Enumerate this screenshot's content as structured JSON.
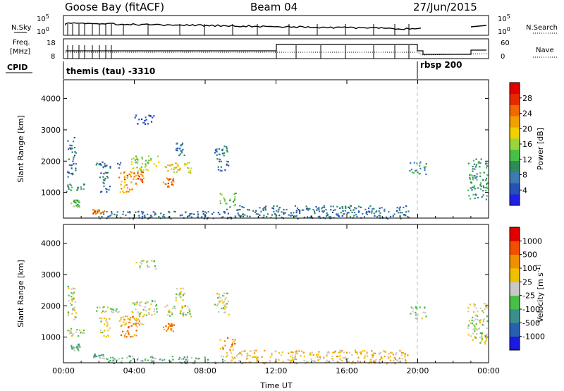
{
  "header": {
    "station": "Goose Bay (fitACF)",
    "beam": "Beam 04",
    "date": "27/Jun/2015"
  },
  "top_panels": {
    "nsky_label": "N.Sky",
    "nsky_tick_hi": "10^5",
    "nsky_tick_lo": "10^0",
    "nsearch_label": "N.Search",
    "nsearch_tick_hi": "10^5",
    "nsearch_tick_lo": "10^0",
    "freq_label_1": "Freq.",
    "freq_label_2": "[MHz]",
    "freq_tick_hi": "18",
    "freq_tick_lo": "8",
    "nave_label": "Nave",
    "nave_tick_hi": "60",
    "nave_tick_lo": "0",
    "cpid_label": "CPID",
    "cpid_segments": [
      {
        "label": "themis (tau) -3310",
        "start_hour": 0.0,
        "end_hour": 20.0
      },
      {
        "label": "rbsp 200",
        "start_hour": 20.0,
        "end_hour": 24.0
      }
    ]
  },
  "chart_data": [
    {
      "type": "heatmap",
      "panel": "power",
      "ylabel": "Slant Range [km]",
      "ylim": [
        180,
        4600
      ],
      "yticks": [
        1000,
        2000,
        3000,
        4000
      ],
      "xlim": [
        0,
        24
      ],
      "xticks": [
        "00:00",
        "04:00",
        "08:00",
        "12:00",
        "16:00",
        "20:00",
        "00:00"
      ],
      "colorbar": {
        "label": "Power [dB]",
        "ticks": [
          "4",
          "8",
          "12",
          "16",
          "20",
          "24",
          "28"
        ],
        "colors": [
          "#1f1fe6",
          "#2850b4",
          "#3c7ab0",
          "#2e8b57",
          "#48c048",
          "#9bd53c",
          "#f0d000",
          "#f0a000",
          "#f06a00",
          "#e52a00",
          "#e00000"
        ]
      },
      "regions": [
        {
          "t0": 0.1,
          "t1": 1.2,
          "r0": 1050,
          "r1": 1300,
          "level": 3
        },
        {
          "t0": 0.2,
          "t1": 0.7,
          "r0": 1500,
          "r1": 2800,
          "level": 2
        },
        {
          "t0": 0.4,
          "t1": 0.9,
          "r0": 550,
          "r1": 800,
          "level": 4
        },
        {
          "t0": 1.6,
          "t1": 2.3,
          "r0": 340,
          "r1": 480,
          "level": 8
        },
        {
          "t0": 2.0,
          "t1": 2.6,
          "r0": 1000,
          "r1": 1700,
          "level": 2
        },
        {
          "t0": 1.8,
          "t1": 3.2,
          "r0": 1800,
          "r1": 2000,
          "level": 2
        },
        {
          "t0": 3.1,
          "t1": 4.1,
          "r0": 1000,
          "r1": 1700,
          "level": 7
        },
        {
          "t0": 3.3,
          "t1": 4.5,
          "r0": 1350,
          "r1": 1700,
          "level": 8
        },
        {
          "t0": 3.8,
          "t1": 5.4,
          "r0": 1700,
          "r1": 2200,
          "level": 5
        },
        {
          "t0": 5.6,
          "t1": 6.2,
          "r0": 1200,
          "r1": 1500,
          "level": 8
        },
        {
          "t0": 5.7,
          "t1": 7.2,
          "r0": 1650,
          "r1": 2050,
          "level": 6
        },
        {
          "t0": 6.3,
          "t1": 6.8,
          "r0": 2200,
          "r1": 2600,
          "level": 2
        },
        {
          "t0": 4.0,
          "t1": 5.2,
          "r0": 3200,
          "r1": 3500,
          "level": 1
        },
        {
          "t0": 8.8,
          "t1": 9.7,
          "r0": 600,
          "r1": 1000,
          "level": 4
        },
        {
          "t0": 8.5,
          "t1": 9.3,
          "r0": 1700,
          "r1": 2500,
          "level": 2
        },
        {
          "t0": 2.0,
          "t1": 9.0,
          "r0": 180,
          "r1": 420,
          "level": 2
        },
        {
          "t0": 9.0,
          "t1": 19.5,
          "r0": 180,
          "r1": 600,
          "level": 2
        },
        {
          "t0": 19.5,
          "t1": 20.5,
          "r0": 1600,
          "r1": 2000,
          "level": 3
        },
        {
          "t0": 22.8,
          "t1": 23.9,
          "r0": 800,
          "r1": 2100,
          "level": 3
        }
      ]
    },
    {
      "type": "heatmap",
      "panel": "velocity",
      "ylabel": "Slant Range [km]",
      "ylim": [
        180,
        4600
      ],
      "yticks": [
        1000,
        2000,
        3000,
        4000
      ],
      "xlabel": "Time UT",
      "xlim": [
        0,
        24
      ],
      "xticks": [
        "00:00",
        "04:00",
        "08:00",
        "12:00",
        "16:00",
        "20:00",
        "00:00"
      ],
      "colorbar": {
        "label": "Velocity [m s^-1]",
        "ticks": [
          "1000",
          "500",
          "100",
          "25",
          "-25",
          "-100",
          "-500",
          "-1000"
        ],
        "colors": [
          "#1a1ae0",
          "#2860b0",
          "#3a8f8a",
          "#48c048",
          "#c8c8c8",
          "#f0c000",
          "#f09000",
          "#f05000",
          "#e00000"
        ]
      },
      "regions": [
        {
          "t0": 0.1,
          "t1": 1.2,
          "r0": 1050,
          "r1": 1300,
          "level": 4
        },
        {
          "t0": 0.2,
          "t1": 0.7,
          "r0": 1500,
          "r1": 2800,
          "level": 4
        },
        {
          "t0": 0.4,
          "t1": 0.9,
          "r0": 550,
          "r1": 800,
          "level": 3
        },
        {
          "t0": 1.6,
          "t1": 2.3,
          "r0": 340,
          "r1": 480,
          "level": 3
        },
        {
          "t0": 2.0,
          "t1": 2.6,
          "r0": 1000,
          "r1": 1700,
          "level": 4
        },
        {
          "t0": 1.8,
          "t1": 3.2,
          "r0": 1800,
          "r1": 2000,
          "level": 4
        },
        {
          "t0": 3.1,
          "t1": 4.1,
          "r0": 1000,
          "r1": 1700,
          "level": 6
        },
        {
          "t0": 3.3,
          "t1": 4.5,
          "r0": 1350,
          "r1": 1700,
          "level": 5
        },
        {
          "t0": 3.8,
          "t1": 5.4,
          "r0": 1700,
          "r1": 2200,
          "level": 4
        },
        {
          "t0": 5.6,
          "t1": 6.2,
          "r0": 1200,
          "r1": 1500,
          "level": 6
        },
        {
          "t0": 5.7,
          "t1": 7.2,
          "r0": 1650,
          "r1": 2050,
          "level": 4
        },
        {
          "t0": 6.3,
          "t1": 6.8,
          "r0": 2200,
          "r1": 2600,
          "level": 4
        },
        {
          "t0": 4.0,
          "t1": 5.2,
          "r0": 3200,
          "r1": 3500,
          "level": 4
        },
        {
          "t0": 8.8,
          "t1": 9.7,
          "r0": 600,
          "r1": 1000,
          "level": 6
        },
        {
          "t0": 8.5,
          "t1": 9.3,
          "r0": 1700,
          "r1": 2500,
          "level": 4
        },
        {
          "t0": 2.0,
          "t1": 9.0,
          "r0": 180,
          "r1": 420,
          "level": 3
        },
        {
          "t0": 9.0,
          "t1": 19.5,
          "r0": 180,
          "r1": 600,
          "level": 5
        },
        {
          "t0": 19.5,
          "t1": 20.5,
          "r0": 1600,
          "r1": 2000,
          "level": 4
        },
        {
          "t0": 22.8,
          "t1": 23.9,
          "r0": 800,
          "r1": 2100,
          "level": 4
        }
      ]
    }
  ]
}
